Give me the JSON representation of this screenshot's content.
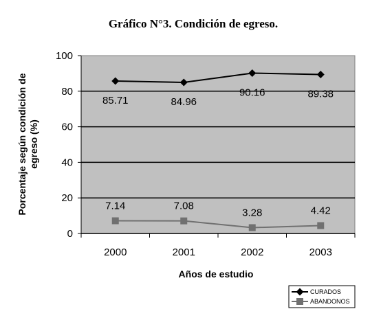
{
  "chart_data": {
    "type": "line",
    "title": "Gráfico N°3. Condición de egreso.",
    "xlabel": "Años de estudio",
    "ylabel_lines": [
      "Porcentaje según condición de",
      "egreso (%)"
    ],
    "categories": [
      "2000",
      "2001",
      "2002",
      "2003"
    ],
    "ylim": [
      0,
      100
    ],
    "yticks": [
      "0",
      "20",
      "40",
      "60",
      "80",
      "100"
    ],
    "grid": "horizontal major gridlines",
    "plot_background": "#c0c0c0",
    "legend_position": "bottom-right",
    "series": [
      {
        "name": "CURADOS",
        "values": [
          85.71,
          84.96,
          90.16,
          89.38
        ],
        "labels": [
          "85.71",
          "84.96",
          "90.16",
          "89.38"
        ],
        "color": "#000000",
        "marker": "diamond"
      },
      {
        "name": "ABANDONOS",
        "values": [
          7.14,
          7.08,
          3.28,
          4.42
        ],
        "labels": [
          "7.14",
          "7.08",
          "3.28",
          "4.42"
        ],
        "color": "#707070",
        "marker": "square"
      }
    ]
  }
}
